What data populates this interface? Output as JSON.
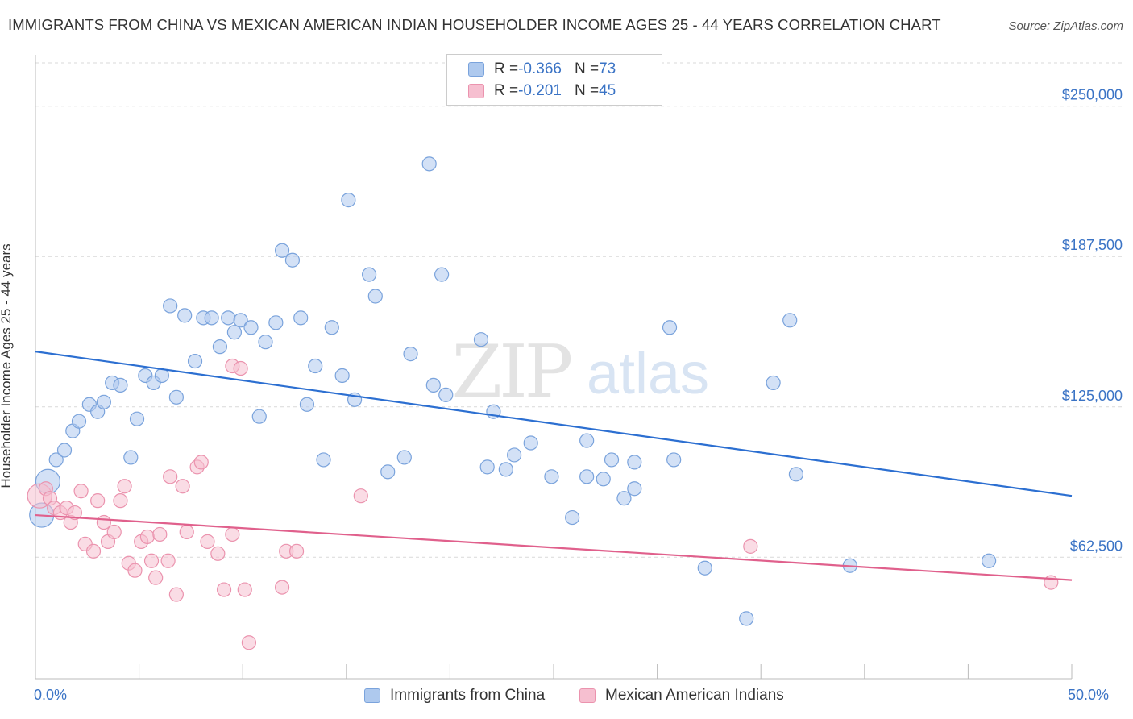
{
  "header": {
    "title": "IMMIGRANTS FROM CHINA VS MEXICAN AMERICAN INDIAN HOUSEHOLDER INCOME AGES 25 - 44 YEARS CORRELATION CHART",
    "source": "Source: ZipAtlas.com"
  },
  "watermark": {
    "zip": "ZIP",
    "atlas": "atlas"
  },
  "legend": {
    "rows": [
      {
        "r_label": "R = ",
        "r_value": "-0.366",
        "n_label": "N = ",
        "n_value": "73"
      },
      {
        "r_label": "R = ",
        "r_value": "-0.201",
        "n_label": "N = ",
        "n_value": "45"
      }
    ]
  },
  "colors": {
    "blue_fill": "#aec9ee",
    "blue_stroke": "#7aa3dc",
    "blue_line": "#2c6fd1",
    "pink_fill": "#f6bfd0",
    "pink_stroke": "#eb93ae",
    "pink_line": "#e0608c",
    "grid": "#d9d9d9",
    "axis_text": "#3a73c5"
  },
  "chart_data": {
    "type": "scatter",
    "xlabel": "",
    "ylabel": "Householder Income Ages 25 - 44 years",
    "xlim": [
      0,
      50
    ],
    "ylim": [
      12000,
      268000
    ],
    "x_tick_labels": [
      "0.0%",
      "50.0%"
    ],
    "y_ticks": [
      62500,
      125000,
      187500,
      250000
    ],
    "y_tick_labels": [
      "$62,500",
      "$125,000",
      "$187,500",
      "$250,000"
    ],
    "grid": true,
    "legend_position": "bottom",
    "series": [
      {
        "name": "Immigrants from China",
        "trend": {
          "x": [
            0,
            50
          ],
          "y": [
            148000,
            88000
          ]
        },
        "points": [
          {
            "x": 0.3,
            "y": 80000,
            "big": true
          },
          {
            "x": 0.6,
            "y": 94000,
            "big": true
          },
          {
            "x": 1.0,
            "y": 103000
          },
          {
            "x": 1.4,
            "y": 107000
          },
          {
            "x": 1.8,
            "y": 115000
          },
          {
            "x": 2.1,
            "y": 119000
          },
          {
            "x": 2.6,
            "y": 126000
          },
          {
            "x": 3.0,
            "y": 123000
          },
          {
            "x": 3.3,
            "y": 127000
          },
          {
            "x": 3.7,
            "y": 135000
          },
          {
            "x": 4.1,
            "y": 134000
          },
          {
            "x": 4.6,
            "y": 104000
          },
          {
            "x": 4.9,
            "y": 120000
          },
          {
            "x": 5.3,
            "y": 138000
          },
          {
            "x": 5.7,
            "y": 135000
          },
          {
            "x": 6.1,
            "y": 138000
          },
          {
            "x": 6.5,
            "y": 167000
          },
          {
            "x": 6.8,
            "y": 129000
          },
          {
            "x": 7.2,
            "y": 163000
          },
          {
            "x": 7.7,
            "y": 144000
          },
          {
            "x": 8.1,
            "y": 162000
          },
          {
            "x": 8.5,
            "y": 162000
          },
          {
            "x": 8.9,
            "y": 150000
          },
          {
            "x": 9.3,
            "y": 162000
          },
          {
            "x": 9.6,
            "y": 156000
          },
          {
            "x": 9.9,
            "y": 161000
          },
          {
            "x": 10.4,
            "y": 158000
          },
          {
            "x": 10.8,
            "y": 121000
          },
          {
            "x": 11.1,
            "y": 152000
          },
          {
            "x": 11.6,
            "y": 160000
          },
          {
            "x": 11.9,
            "y": 190000
          },
          {
            "x": 12.4,
            "y": 186000
          },
          {
            "x": 12.8,
            "y": 162000
          },
          {
            "x": 13.1,
            "y": 126000
          },
          {
            "x": 13.5,
            "y": 142000
          },
          {
            "x": 13.9,
            "y": 103000
          },
          {
            "x": 14.3,
            "y": 158000
          },
          {
            "x": 14.8,
            "y": 138000
          },
          {
            "x": 15.1,
            "y": 211000
          },
          {
            "x": 15.4,
            "y": 128000
          },
          {
            "x": 16.1,
            "y": 180000
          },
          {
            "x": 16.4,
            "y": 171000
          },
          {
            "x": 17.0,
            "y": 98000
          },
          {
            "x": 17.8,
            "y": 104000
          },
          {
            "x": 18.1,
            "y": 147000
          },
          {
            "x": 19.0,
            "y": 226000
          },
          {
            "x": 19.2,
            "y": 134000
          },
          {
            "x": 19.6,
            "y": 180000
          },
          {
            "x": 19.8,
            "y": 130000
          },
          {
            "x": 21.5,
            "y": 153000
          },
          {
            "x": 21.8,
            "y": 100000
          },
          {
            "x": 22.1,
            "y": 123000
          },
          {
            "x": 22.7,
            "y": 99000
          },
          {
            "x": 23.1,
            "y": 105000
          },
          {
            "x": 23.9,
            "y": 110000
          },
          {
            "x": 24.9,
            "y": 96000
          },
          {
            "x": 25.9,
            "y": 79000
          },
          {
            "x": 26.6,
            "y": 96000
          },
          {
            "x": 26.6,
            "y": 111000
          },
          {
            "x": 27.4,
            "y": 95000
          },
          {
            "x": 27.8,
            "y": 103000
          },
          {
            "x": 28.4,
            "y": 87000
          },
          {
            "x": 28.9,
            "y": 102000
          },
          {
            "x": 28.9,
            "y": 91000
          },
          {
            "x": 30.6,
            "y": 158000
          },
          {
            "x": 30.8,
            "y": 103000
          },
          {
            "x": 32.3,
            "y": 58000
          },
          {
            "x": 34.3,
            "y": 37000
          },
          {
            "x": 35.6,
            "y": 135000
          },
          {
            "x": 36.4,
            "y": 161000
          },
          {
            "x": 36.7,
            "y": 97000
          },
          {
            "x": 39.3,
            "y": 59000
          },
          {
            "x": 46.0,
            "y": 61000
          }
        ]
      },
      {
        "name": "Mexican American Indians",
        "trend": {
          "x": [
            0,
            50
          ],
          "y": [
            80000,
            53000
          ]
        },
        "points": [
          {
            "x": 0.2,
            "y": 88000,
            "big": true
          },
          {
            "x": 0.5,
            "y": 91000
          },
          {
            "x": 0.7,
            "y": 87000
          },
          {
            "x": 0.9,
            "y": 83000
          },
          {
            "x": 1.2,
            "y": 81000
          },
          {
            "x": 1.5,
            "y": 83000
          },
          {
            "x": 1.7,
            "y": 77000
          },
          {
            "x": 1.9,
            "y": 81000
          },
          {
            "x": 2.2,
            "y": 90000
          },
          {
            "x": 2.4,
            "y": 68000
          },
          {
            "x": 2.8,
            "y": 65000
          },
          {
            "x": 3.0,
            "y": 86000
          },
          {
            "x": 3.3,
            "y": 77000
          },
          {
            "x": 3.5,
            "y": 69000
          },
          {
            "x": 3.8,
            "y": 73000
          },
          {
            "x": 4.1,
            "y": 86000
          },
          {
            "x": 4.3,
            "y": 92000
          },
          {
            "x": 4.5,
            "y": 60000
          },
          {
            "x": 4.8,
            "y": 57000
          },
          {
            "x": 5.1,
            "y": 69000
          },
          {
            "x": 5.4,
            "y": 71000
          },
          {
            "x": 5.6,
            "y": 61000
          },
          {
            "x": 5.8,
            "y": 54000
          },
          {
            "x": 6.0,
            "y": 72000
          },
          {
            "x": 6.4,
            "y": 61000
          },
          {
            "x": 6.5,
            "y": 96000
          },
          {
            "x": 6.8,
            "y": 47000
          },
          {
            "x": 7.1,
            "y": 92000
          },
          {
            "x": 7.3,
            "y": 73000
          },
          {
            "x": 7.8,
            "y": 100000
          },
          {
            "x": 8.0,
            "y": 102000
          },
          {
            "x": 8.3,
            "y": 69000
          },
          {
            "x": 8.8,
            "y": 64000
          },
          {
            "x": 9.1,
            "y": 49000
          },
          {
            "x": 9.5,
            "y": 142000
          },
          {
            "x": 9.5,
            "y": 72000
          },
          {
            "x": 9.9,
            "y": 141000
          },
          {
            "x": 10.1,
            "y": 49000
          },
          {
            "x": 10.3,
            "y": 27000
          },
          {
            "x": 11.9,
            "y": 50000
          },
          {
            "x": 12.1,
            "y": 65000
          },
          {
            "x": 12.6,
            "y": 65000
          },
          {
            "x": 15.7,
            "y": 88000
          },
          {
            "x": 34.5,
            "y": 67000
          },
          {
            "x": 49.0,
            "y": 52000
          }
        ]
      }
    ]
  }
}
